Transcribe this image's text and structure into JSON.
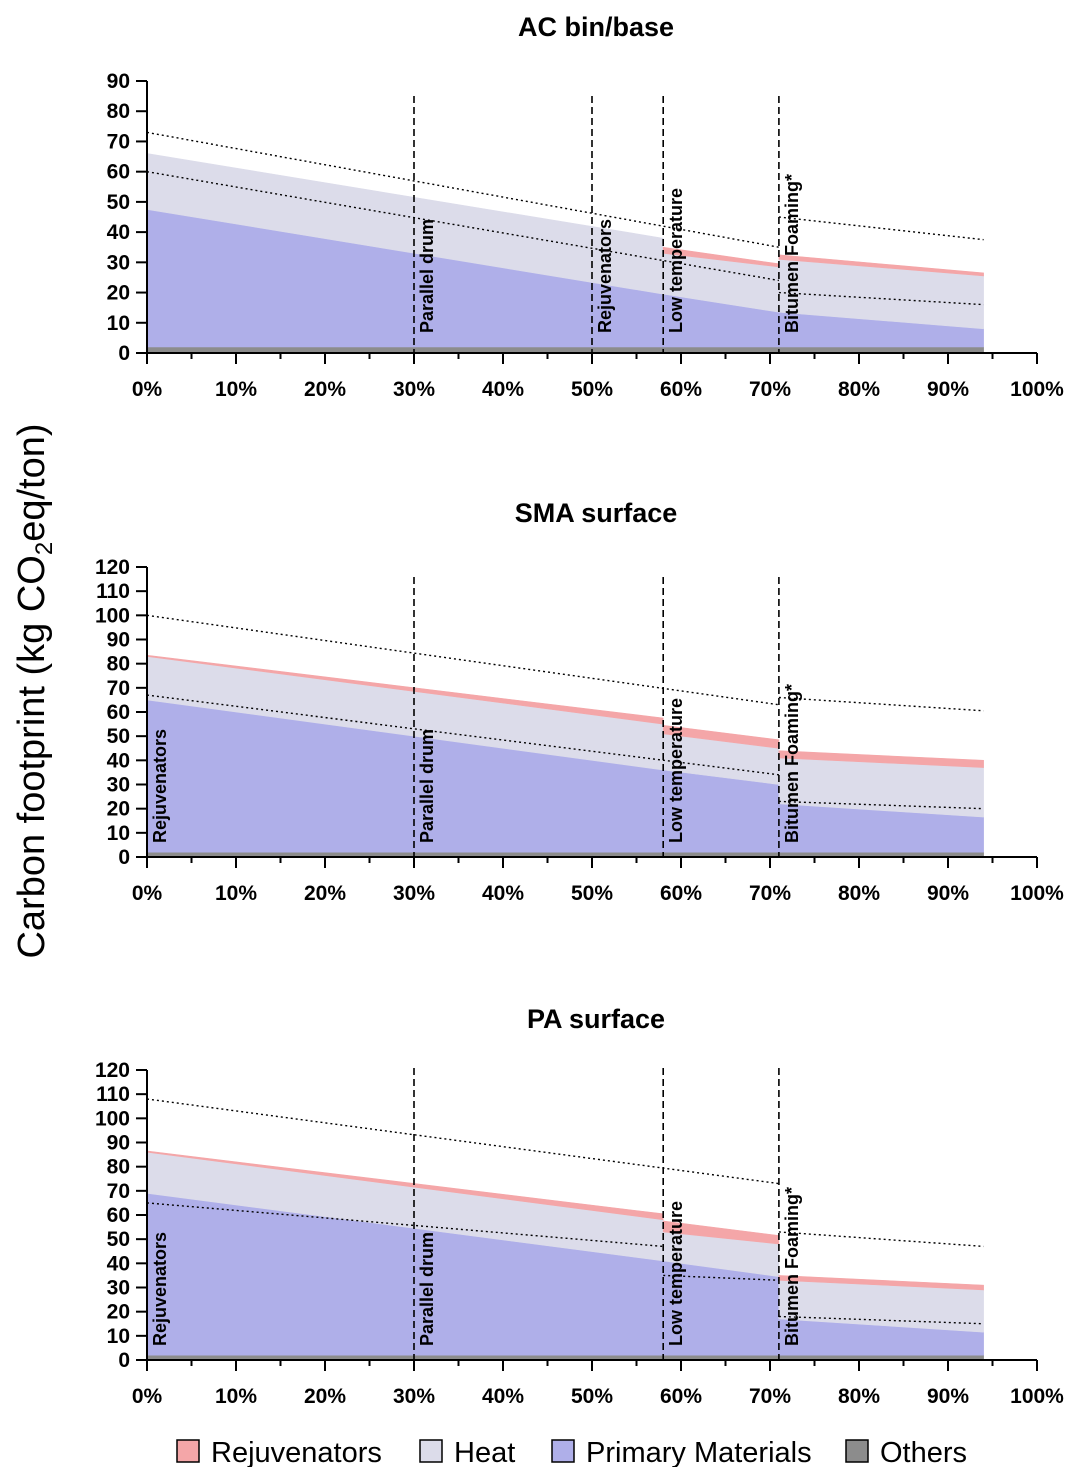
{
  "figure": {
    "ylabel_main": "Carbon footprint (kg CO",
    "ylabel_sub": "2",
    "ylabel_tail": "eq/ton)"
  },
  "legend": [
    {
      "name": "Rejuvenators",
      "color": "#f4a6a8"
    },
    {
      "name": "Heat",
      "color": "#dcdcea"
    },
    {
      "name": "Primary Materials",
      "color": "#afafe9"
    },
    {
      "name": "Others",
      "color": "#8c8c8c"
    }
  ],
  "chart_data": [
    {
      "type": "area",
      "title": "AC bin/base",
      "xlabel": "",
      "ylabel": "Carbon footprint (kg CO2eq/ton)",
      "xlim": [
        0,
        100
      ],
      "ylim": [
        0,
        90
      ],
      "yticks": [
        0,
        10,
        20,
        30,
        40,
        50,
        60,
        70,
        80,
        90
      ],
      "xticks": [
        "0%",
        "10%",
        "20%",
        "30%",
        "40%",
        "50%",
        "60%",
        "70%",
        "80%",
        "90%",
        "100%"
      ],
      "xtick_values": [
        0,
        10,
        20,
        30,
        40,
        50,
        60,
        70,
        80,
        90,
        100
      ],
      "vlines": [
        {
          "x": 30,
          "label": "Parallel drum"
        },
        {
          "x": 50,
          "label": "Rejuvenators"
        },
        {
          "x": 58,
          "label": "Low temperature"
        },
        {
          "x": 71,
          "label": "Bitumen Foaming*"
        }
      ],
      "segments": [
        {
          "x": [
            0,
            58
          ],
          "others": [
            2,
            2
          ],
          "primary": [
            47.5,
            19.5
          ],
          "heat_top": [
            66,
            38
          ],
          "rej_top": [
            66,
            38
          ]
        },
        {
          "x": [
            58,
            71
          ],
          "others": [
            2,
            2
          ],
          "primary": [
            19.5,
            13.5
          ],
          "heat_top": [
            33,
            28.5
          ],
          "rej_top": [
            35,
            29.5
          ]
        },
        {
          "x": [
            71,
            94
          ],
          "others": [
            2,
            2
          ],
          "primary": [
            13.5,
            8
          ],
          "heat_top": [
            31,
            25.5
          ],
          "rej_top": [
            32.5,
            26.5
          ]
        }
      ],
      "bounds": [
        {
          "x": [
            0,
            71
          ],
          "y": [
            73,
            35
          ]
        },
        {
          "x": [
            71,
            94
          ],
          "y": [
            45,
            37.5
          ]
        },
        {
          "x": [
            0,
            71
          ],
          "y": [
            60,
            24
          ]
        },
        {
          "x": [
            71,
            94
          ],
          "y": [
            20,
            16
          ]
        }
      ]
    },
    {
      "type": "area",
      "title": "SMA surface",
      "xlabel": "",
      "ylabel": "Carbon footprint (kg CO2eq/ton)",
      "xlim": [
        0,
        100
      ],
      "ylim": [
        0,
        120
      ],
      "yticks": [
        0,
        10,
        20,
        30,
        40,
        50,
        60,
        70,
        80,
        90,
        100,
        110,
        120
      ],
      "xticks": [
        "0%",
        "10%",
        "20%",
        "30%",
        "40%",
        "50%",
        "60%",
        "70%",
        "80%",
        "90%",
        "100%"
      ],
      "xtick_values": [
        0,
        10,
        20,
        30,
        40,
        50,
        60,
        70,
        80,
        90,
        100
      ],
      "vlines": [
        {
          "x": 0,
          "label": "Rejuvenators"
        },
        {
          "x": 30,
          "label": "Parallel drum"
        },
        {
          "x": 58,
          "label": "Low temperature"
        },
        {
          "x": 71,
          "label": "Bitumen Foaming*"
        }
      ],
      "segments": [
        {
          "x": [
            0,
            58
          ],
          "others": [
            2,
            2
          ],
          "primary": [
            65,
            36
          ],
          "heat_top": [
            83,
            55
          ],
          "rej_top": [
            83.5,
            57.5
          ]
        },
        {
          "x": [
            58,
            71
          ],
          "others": [
            2,
            2
          ],
          "primary": [
            36,
            30
          ],
          "heat_top": [
            51,
            45
          ],
          "rej_top": [
            54.5,
            48.5
          ]
        },
        {
          "x": [
            71,
            94
          ],
          "others": [
            2,
            2
          ],
          "primary": [
            22,
            16.5
          ],
          "heat_top": [
            41,
            37
          ],
          "rej_top": [
            44,
            40
          ]
        }
      ],
      "bounds": [
        {
          "x": [
            0,
            71
          ],
          "y": [
            100,
            63
          ]
        },
        {
          "x": [
            71,
            94
          ],
          "y": [
            66,
            60.5
          ]
        },
        {
          "x": [
            0,
            71
          ],
          "y": [
            67,
            34
          ]
        },
        {
          "x": [
            71,
            94
          ],
          "y": [
            23,
            20
          ]
        }
      ]
    },
    {
      "type": "area",
      "title": "PA surface",
      "xlabel": "",
      "ylabel": "Carbon footprint (kg CO2eq/ton)",
      "xlim": [
        0,
        100
      ],
      "ylim": [
        0,
        120
      ],
      "yticks": [
        0,
        10,
        20,
        30,
        40,
        50,
        60,
        70,
        80,
        90,
        100,
        110,
        120
      ],
      "xticks": [
        "0%",
        "10%",
        "20%",
        "30%",
        "40%",
        "50%",
        "60%",
        "70%",
        "80%",
        "90%",
        "100%"
      ],
      "xtick_values": [
        0,
        10,
        20,
        30,
        40,
        50,
        60,
        70,
        80,
        90,
        100
      ],
      "vlines": [
        {
          "x": 0,
          "label": "Rejuvenators"
        },
        {
          "x": 30,
          "label": "Parallel drum"
        },
        {
          "x": 58,
          "label": "Low temperature"
        },
        {
          "x": 71,
          "label": "Bitumen Foaming*"
        }
      ],
      "segments": [
        {
          "x": [
            0,
            58
          ],
          "others": [
            2,
            2
          ],
          "primary": [
            69,
            41
          ],
          "heat_top": [
            86,
            58
          ],
          "rej_top": [
            86.5,
            60.5
          ]
        },
        {
          "x": [
            58,
            71
          ],
          "others": [
            2,
            2
          ],
          "primary": [
            41,
            34.5
          ],
          "heat_top": [
            53,
            48
          ],
          "rej_top": [
            57.5,
            51.5
          ]
        },
        {
          "x": [
            71,
            94
          ],
          "others": [
            2,
            2
          ],
          "primary": [
            17,
            11.5
          ],
          "heat_top": [
            33,
            29
          ],
          "rej_top": [
            35,
            31
          ]
        }
      ],
      "bounds": [
        {
          "x": [
            0,
            71
          ],
          "y": [
            108,
            73
          ]
        },
        {
          "x": [
            71,
            94
          ],
          "y": [
            53,
            47
          ]
        },
        {
          "x": [
            0,
            58
          ],
          "y": [
            65,
            47
          ]
        },
        {
          "x": [
            58,
            71
          ],
          "y": [
            35,
            33
          ]
        },
        {
          "x": [
            71,
            94
          ],
          "y": [
            18,
            15
          ]
        }
      ]
    }
  ]
}
